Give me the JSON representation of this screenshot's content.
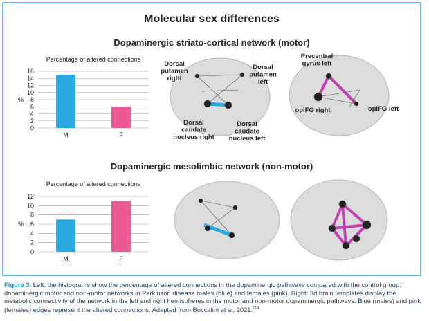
{
  "title": "Molecular sex differences",
  "panels": [
    {
      "heading": "Dopaminergic striato-cortical network (motor)",
      "labels": [
        {
          "lines": [
            "Dorsal",
            "putamen",
            "right"
          ]
        },
        {
          "lines": [
            "Dorsal",
            "putamen",
            "left"
          ]
        },
        {
          "lines": [
            "Dorsal",
            "caudate",
            "nucleus right"
          ]
        },
        {
          "lines": [
            "Dorsal",
            "caudate",
            "nucleus left"
          ]
        },
        {
          "lines": [
            "Precentral",
            "gyrus left"
          ]
        },
        {
          "lines": [
            "opIFG right"
          ]
        },
        {
          "lines": [
            "opIFG left"
          ]
        }
      ]
    },
    {
      "heading": "Dopaminergic mesolimbic network (non-motor)",
      "labels": []
    }
  ],
  "chart_data": [
    {
      "type": "bar",
      "title": "Percentage of altered connections",
      "ylabel": "%",
      "categories": [
        "M",
        "F"
      ],
      "values": [
        15,
        6
      ],
      "colors": [
        "#29abe2",
        "#ec5b93"
      ],
      "ylim": [
        0,
        16
      ],
      "yticks": [
        0,
        2,
        4,
        6,
        8,
        10,
        12,
        14,
        16
      ],
      "grid": true
    },
    {
      "type": "bar",
      "title": "Percentage of altered connections",
      "ylabel": "%",
      "categories": [
        "M",
        "F"
      ],
      "values": [
        7,
        11
      ],
      "colors": [
        "#29abe2",
        "#ec5b93"
      ],
      "ylim": [
        0,
        12
      ],
      "yticks": [
        0,
        2,
        4,
        6,
        8,
        10,
        12
      ],
      "grid": true
    }
  ],
  "caption": {
    "label": "Figure 3.",
    "text": "Left: the histograms show the percentage of altered connections in the dopaminergic pathways compared with the control group: dopaminergic motor and non-motor networks in Parkinson disease males (blue) and females (pink). Right: 3d brain templates display the metabolic connectivity of the network in the left and right hemispheres in the motor and non-motor dopaminergic pathways. Blue (males) and pink (females) edges represent the altered connections. Adapted from Boccalini et al, 2021.",
    "ref": "114"
  }
}
